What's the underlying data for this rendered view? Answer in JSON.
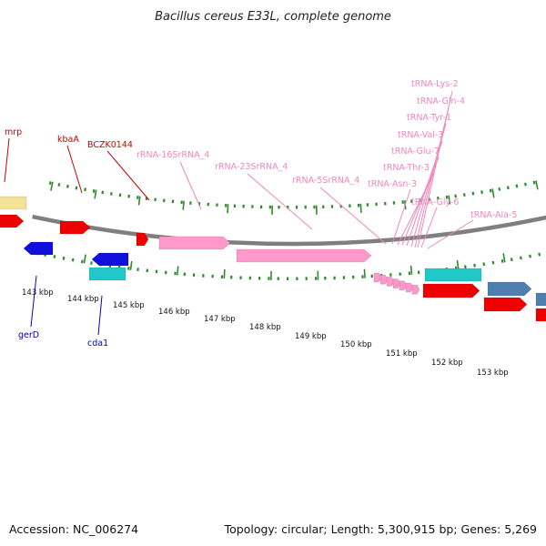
{
  "title": "Bacillus cereus E33L, complete genome",
  "footer": {
    "accession": "Accession: NC_006274",
    "summary": "Topology: circular; Length: 5,300,915 bp; Genes: 5,269"
  },
  "colors": {
    "backbone": "#7f7f7f",
    "tick": "#2e8b2e",
    "gene_red": "#ee0000",
    "gene_blue": "#1010dd",
    "gene_cyan": "#20c8c8",
    "gene_pink": "#ff99cc",
    "gene_yellow": "#f3e39a",
    "gene_steel": "#4f7fae",
    "label_red": "#cc0000",
    "label_blue": "#0000bb",
    "label_pink": "#ee88bb"
  },
  "map": {
    "kbp_labels": [
      "143 kbp",
      "144 kbp",
      "145 kbp",
      "146 kbp",
      "147 kbp",
      "148 kbp",
      "149 kbp",
      "150 kbp",
      "151 kbp",
      "152 kbp",
      "153 kbp"
    ],
    "gene_labels_red": [
      "mrp",
      "kbaA",
      "BCZK0144"
    ],
    "gene_labels_blue": [
      "gerD",
      "cda1"
    ],
    "rna_labels": [
      "rRNA-16SrRNA_4",
      "rRNA-23SrRNA_4",
      "rRNA-5SrRNA_4",
      "tRNA-Lys-2",
      "tRNA-Gln-4",
      "tRNA-Tyr-1",
      "tRNA-Val-3",
      "tRNA-Glu-7",
      "tRNA-Thr-3",
      "tRNA-Asn-3",
      "tRNA-Gly-6",
      "tRNA-Ala-5"
    ]
  }
}
